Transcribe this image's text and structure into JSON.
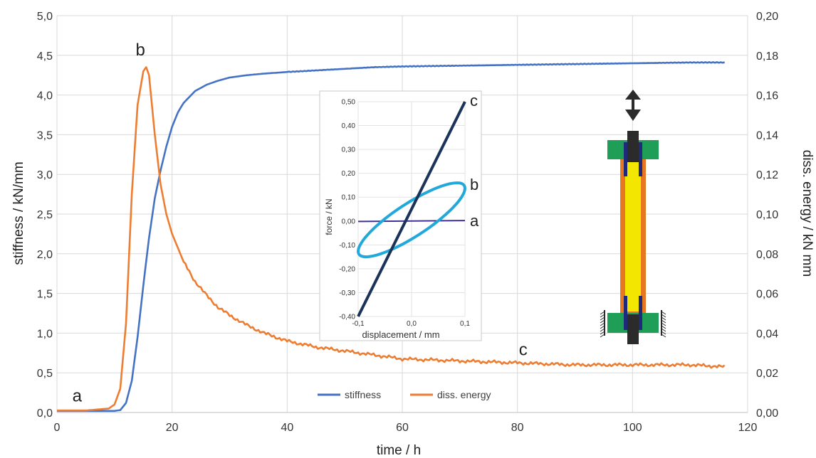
{
  "chart_data": [
    {
      "type": "line",
      "xlabel": "time / h",
      "ylabel": "stiffness / kN/mm",
      "y2label": "diss. energy / kN mm",
      "xlim": [
        0,
        120
      ],
      "ylim": [
        0,
        5
      ],
      "y2lim": [
        0,
        0.2
      ],
      "x_ticks": [
        "0",
        "20",
        "40",
        "60",
        "80",
        "100",
        "120"
      ],
      "y_ticks": [
        "0,0",
        "0,5",
        "1,0",
        "1,5",
        "2,0",
        "2,5",
        "3,0",
        "3,5",
        "4,0",
        "4,5",
        "5,0"
      ],
      "y2_ticks": [
        "0,00",
        "0,02",
        "0,04",
        "0,06",
        "0,08",
        "0,10",
        "0,12",
        "0,14",
        "0,16",
        "0,18",
        "0,20"
      ],
      "grid": true,
      "legend_position": "bottom-center",
      "series": [
        {
          "name": "stiffness",
          "axis": "left",
          "color": "#4472C4",
          "x": [
            0,
            10,
            11,
            12,
            13,
            14,
            15,
            16,
            17,
            18,
            19,
            20,
            21,
            22,
            24,
            26,
            28,
            30,
            33,
            36,
            40,
            45,
            50,
            55,
            60,
            70,
            80,
            90,
            100,
            110,
            116
          ],
          "y": [
            0.02,
            0.02,
            0.03,
            0.12,
            0.4,
            0.95,
            1.6,
            2.2,
            2.7,
            3.05,
            3.35,
            3.6,
            3.78,
            3.9,
            4.05,
            4.13,
            4.18,
            4.22,
            4.25,
            4.27,
            4.29,
            4.31,
            4.33,
            4.35,
            4.36,
            4.37,
            4.38,
            4.39,
            4.4,
            4.41,
            4.41
          ]
        },
        {
          "name": "diss. energy",
          "axis": "right",
          "color": "#ED7D31",
          "x": [
            0,
            5,
            9,
            10,
            11,
            12,
            13,
            14,
            15,
            15.5,
            16,
            17,
            18,
            19,
            20,
            22,
            24,
            26,
            28,
            30,
            33,
            36,
            40,
            45,
            50,
            55,
            60,
            70,
            80,
            90,
            100,
            110,
            116
          ],
          "y": [
            0.001,
            0.001,
            0.002,
            0.004,
            0.012,
            0.045,
            0.11,
            0.155,
            0.172,
            0.174,
            0.17,
            0.14,
            0.115,
            0.1,
            0.09,
            0.076,
            0.066,
            0.059,
            0.053,
            0.049,
            0.044,
            0.04,
            0.036,
            0.033,
            0.031,
            0.029,
            0.027,
            0.026,
            0.025,
            0.024,
            0.024,
            0.024,
            0.023
          ]
        }
      ],
      "annotations": [
        {
          "text": "a",
          "x": 3.5,
          "y": 0.14
        },
        {
          "text": "b",
          "x": 14.5,
          "y": 4.5
        },
        {
          "text": "c",
          "x": 81,
          "y": 0.72
        }
      ]
    },
    {
      "type": "line",
      "xlabel": "displacement / mm",
      "ylabel": "force / kN",
      "xlim": [
        -0.1,
        0.1
      ],
      "ylim": [
        -0.4,
        0.5
      ],
      "x_ticks": [
        "-0,1",
        "0,0",
        "0,1"
      ],
      "y_ticks": [
        "0,50",
        "0,40",
        "0,30",
        "0,20",
        "0,10",
        "0,00",
        "-0,10",
        "-0,20",
        "-0,30",
        "-0,40"
      ],
      "grid": true,
      "series": [
        {
          "label": "a",
          "color": "#3F3494",
          "x": [
            -0.1,
            0.1
          ],
          "y": [
            -0.002,
            0.002
          ]
        },
        {
          "label": "b",
          "color": "#22A8DB",
          "loop_center": [
            0.0,
            0.005
          ],
          "loop_amplitude": [
            0.1,
            0.155
          ]
        },
        {
          "label": "c",
          "color": "#1B3358",
          "x": [
            -0.1,
            0.1
          ],
          "y": [
            -0.4,
            0.5
          ]
        }
      ],
      "annotations": [
        {
          "text": "c"
        },
        {
          "text": "b"
        },
        {
          "text": "a"
        }
      ]
    }
  ]
}
